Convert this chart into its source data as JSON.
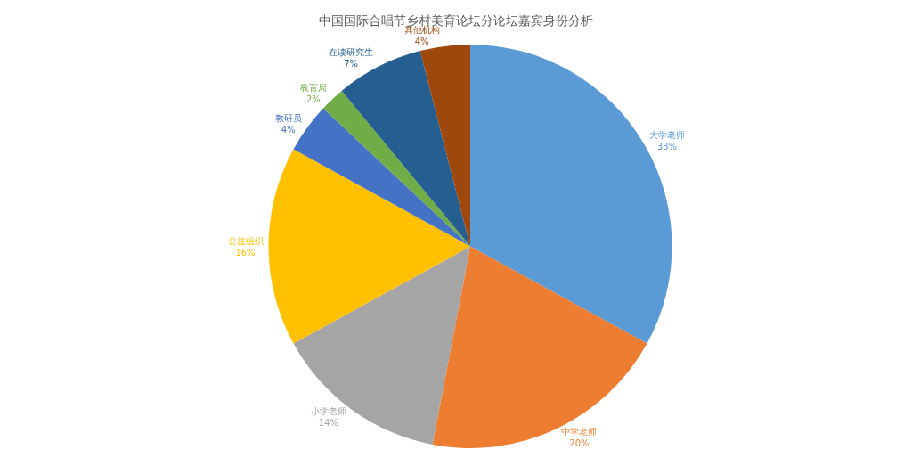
{
  "chart_data": {
    "type": "pie",
    "title": "中国国际合唱节乡村美育论坛分论坛嘉宾身份分析",
    "categories": [
      "大学老师",
      "中学老师",
      "小学老师",
      "公益组织",
      "教研员",
      "教育局",
      "在读研究生",
      "其他机构"
    ],
    "values": [
      33,
      20,
      14,
      16,
      4,
      2,
      7,
      4
    ],
    "value_labels": [
      "33%",
      "20%",
      "14%",
      "16%",
      "4%",
      "2%",
      "7%",
      "4%"
    ],
    "colors": [
      "#5b9bd5",
      "#ed7d31",
      "#a5a5a5",
      "#ffc000",
      "#4472c4",
      "#70ad47",
      "#255e91",
      "#9e480e"
    ],
    "legend": false
  }
}
